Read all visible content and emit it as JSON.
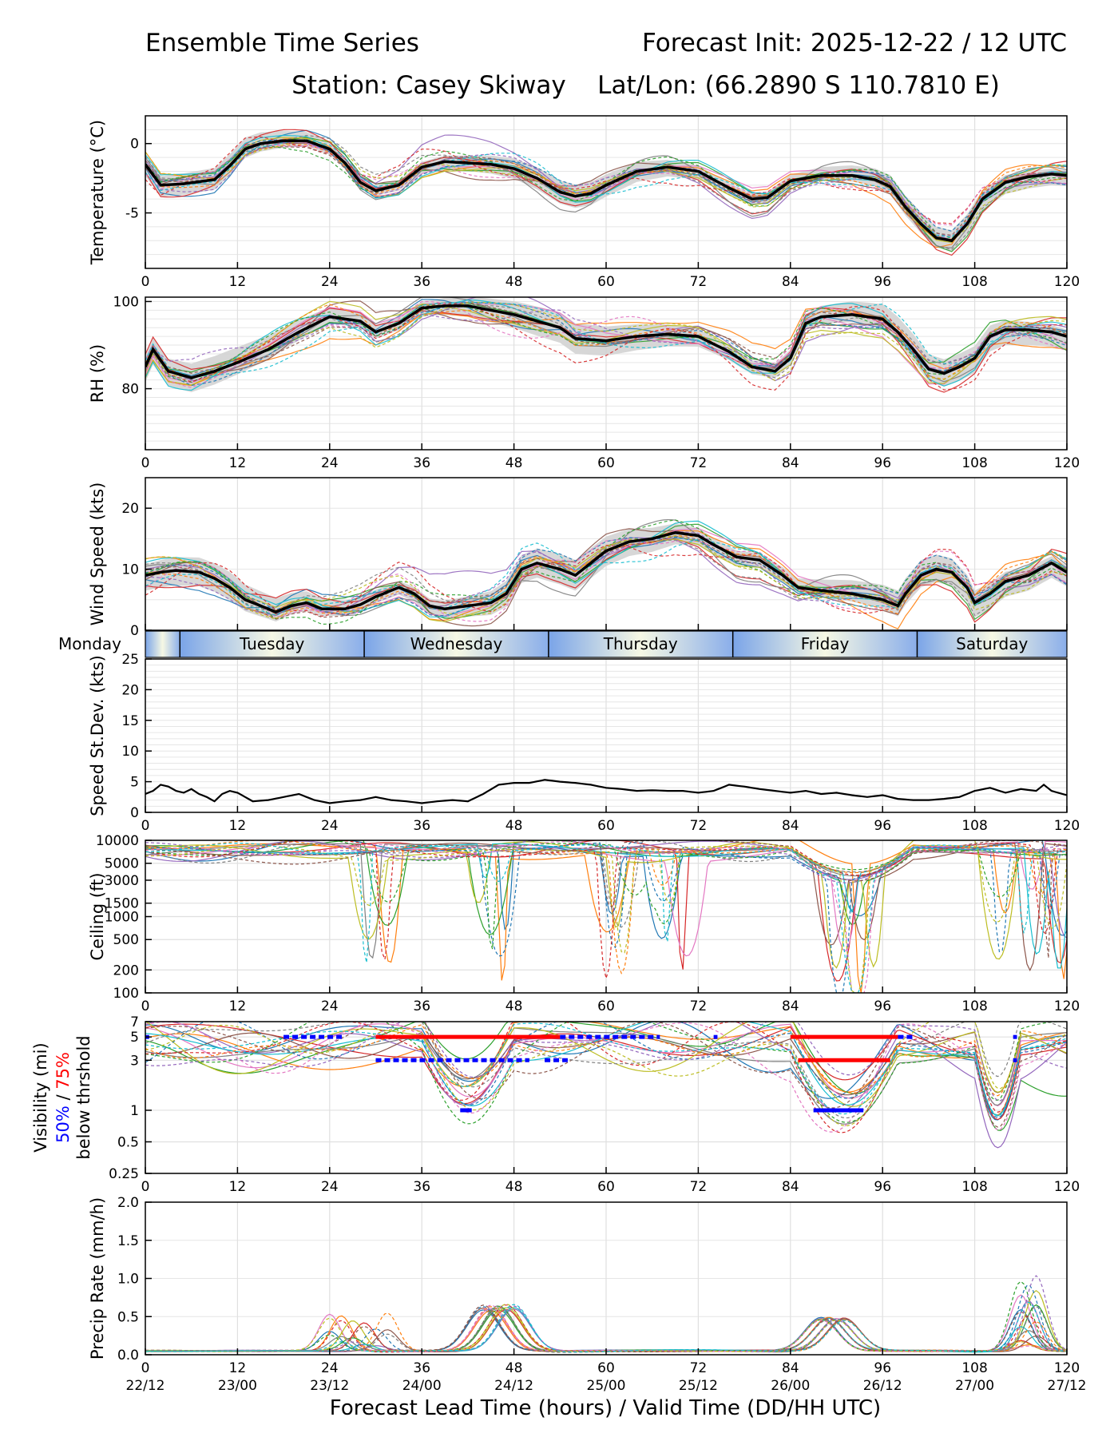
{
  "header": {
    "title_left": "Ensemble Time Series",
    "title_right": "Forecast Init: 2025-12-22 / 12 UTC",
    "station": "Station: Casey Skiway",
    "latlon": "Lat/Lon: (66.2890 S 110.7810 E)"
  },
  "xaxis": {
    "lead_ticks": [
      0,
      12,
      24,
      36,
      48,
      60,
      72,
      84,
      96,
      108,
      120
    ],
    "valid_ticks": [
      "22/12",
      "23/00",
      "23/12",
      "24/00",
      "24/12",
      "25/00",
      "25/12",
      "26/00",
      "26/12",
      "27/00",
      "27/12"
    ],
    "label": "Forecast Lead Time (hours) / Valid Time (DD/HH UTC)"
  },
  "days": {
    "labels": [
      "Monday",
      "Tuesday",
      "Wednesday",
      "Thursday",
      "Friday",
      "Saturday"
    ],
    "boundaries_h": [
      4.5,
      28.5,
      52.5,
      76.5,
      100.5
    ]
  },
  "colors": {
    "mean": "#000000",
    "spread": "#d0d0d0",
    "p50": "#0000ff",
    "p75": "#ff0000",
    "members": [
      "#1f77b4",
      "#ff7f0e",
      "#2ca02c",
      "#d62728",
      "#9467bd",
      "#8c564b",
      "#e377c2",
      "#7f7f7f",
      "#bcbd22",
      "#17becf"
    ]
  },
  "chart_data": [
    {
      "id": "temp",
      "type": "line",
      "ylabel": "Temperature (°C)",
      "ylim": [
        -9,
        2
      ],
      "yticks": [
        0,
        -5
      ],
      "grid_step": 1,
      "mean_series": {
        "x": [
          0,
          2,
          5,
          9,
          11,
          13,
          15,
          18,
          21,
          24,
          26,
          28,
          30,
          33,
          36,
          39,
          42,
          45,
          48,
          51,
          54,
          56,
          58,
          60,
          64,
          68,
          72,
          76,
          79,
          81,
          84,
          88,
          92,
          95,
          97,
          99,
          101,
          103,
          105,
          107,
          109,
          112,
          115,
          118,
          120
        ],
        "y": [
          -1.5,
          -3.0,
          -2.9,
          -2.6,
          -1.6,
          -0.4,
          0.0,
          0.2,
          0.2,
          -0.4,
          -1.4,
          -2.8,
          -3.4,
          -3.0,
          -1.7,
          -1.3,
          -1.4,
          -1.5,
          -1.8,
          -2.5,
          -3.5,
          -3.8,
          -3.6,
          -3.0,
          -2.0,
          -1.7,
          -2.0,
          -3.2,
          -4.0,
          -3.9,
          -2.7,
          -2.3,
          -2.3,
          -2.6,
          -3.1,
          -4.6,
          -5.8,
          -6.8,
          -7.0,
          -5.8,
          -4.0,
          -2.8,
          -2.4,
          -2.2,
          -2.3
        ]
      },
      "spread": 0.6
    },
    {
      "id": "rh",
      "type": "line",
      "ylabel": "RH (%)",
      "ylim": [
        66,
        101
      ],
      "yticks": [
        100,
        80
      ],
      "grid_step": 2,
      "mean_series": {
        "x": [
          0,
          1,
          3,
          6,
          9,
          12,
          16,
          20,
          24,
          28,
          30,
          33,
          36,
          39,
          42,
          45,
          48,
          51,
          54,
          56,
          60,
          64,
          68,
          72,
          76,
          79,
          82,
          84,
          86,
          88,
          92,
          96,
          98,
          100,
          102,
          104,
          106,
          108,
          110,
          112,
          115,
          118,
          120
        ],
        "y": [
          85,
          89,
          84,
          82.5,
          84,
          86,
          89,
          93,
          96.5,
          95.5,
          93,
          95,
          98.5,
          99,
          99,
          98,
          97,
          95.5,
          94,
          91.5,
          91,
          92,
          92.5,
          92,
          88.5,
          85,
          84,
          87,
          95,
          96.5,
          97,
          96,
          93,
          89,
          84.5,
          83.5,
          85,
          87,
          92,
          93.5,
          93.5,
          93,
          92
        ]
      },
      "spread": 2.5
    },
    {
      "id": "wspd",
      "type": "line",
      "ylabel": "Wind Speed (kts)",
      "ylim": [
        0,
        25
      ],
      "yticks": [
        0,
        10,
        20
      ],
      "grid_step": 5,
      "mean_series": {
        "x": [
          0,
          2,
          4,
          7,
          9,
          11,
          13,
          15,
          17,
          19,
          21,
          23,
          26,
          28,
          30,
          33,
          35,
          37,
          39,
          42,
          45,
          47,
          49,
          51,
          54,
          56,
          58,
          60,
          63,
          66,
          69,
          72,
          74,
          77,
          80,
          83,
          85,
          88,
          92,
          96,
          98,
          99,
          101,
          103,
          105,
          107,
          108,
          110,
          112,
          115,
          118,
          120
        ],
        "y": [
          9,
          9.5,
          9.8,
          9.5,
          8.5,
          7,
          5,
          4,
          3,
          4,
          4.5,
          3.5,
          3.5,
          4.2,
          5.5,
          7,
          6,
          4,
          3.5,
          4,
          4.5,
          6,
          10,
          11,
          10,
          9,
          11,
          13,
          14.5,
          15,
          16,
          15.5,
          14,
          12,
          11.5,
          9,
          7,
          6.5,
          6,
          5,
          4,
          6,
          9,
          10,
          9.5,
          7,
          4.5,
          6,
          8,
          9,
          11,
          9.5
        ]
      },
      "spread": 1.8
    },
    {
      "id": "sdev",
      "type": "line",
      "ylabel": "Speed St.Dev. (kts)",
      "ylim": [
        0,
        25
      ],
      "yticks": [
        0,
        5,
        10,
        15,
        20,
        25
      ],
      "grid_step": 1,
      "mean_series": {
        "x": [
          0,
          1,
          2,
          3,
          4,
          5,
          6,
          7,
          8,
          9,
          10,
          11,
          12,
          13,
          14,
          16,
          18,
          20,
          22,
          24,
          26,
          28,
          30,
          32,
          34,
          36,
          38,
          40,
          42,
          44,
          46,
          48,
          50,
          52,
          54,
          56,
          58,
          60,
          62,
          64,
          66,
          68,
          70,
          72,
          74,
          76,
          78,
          80,
          82,
          84,
          86,
          88,
          90,
          92,
          94,
          96,
          98,
          100,
          102,
          104,
          106,
          108,
          110,
          112,
          114,
          116,
          117,
          118,
          120
        ],
        "y": [
          3,
          3.5,
          4.5,
          4.2,
          3.5,
          3.2,
          3.8,
          3.0,
          2.5,
          1.8,
          3.0,
          3.5,
          3.2,
          2.5,
          1.8,
          2.0,
          2.5,
          3.0,
          2.0,
          1.5,
          1.8,
          2.0,
          2.5,
          2.0,
          1.8,
          1.5,
          1.8,
          2.0,
          1.8,
          3.0,
          4.5,
          4.8,
          4.8,
          5.3,
          5.0,
          4.8,
          4.5,
          4.0,
          3.8,
          3.5,
          3.6,
          3.5,
          3.5,
          3.2,
          3.5,
          4.5,
          4.2,
          3.8,
          3.5,
          3.2,
          3.5,
          3.0,
          3.2,
          2.8,
          2.5,
          2.8,
          2.2,
          2.0,
          2.0,
          2.2,
          2.5,
          3.5,
          4.0,
          3.2,
          3.8,
          3.5,
          4.5,
          3.5,
          2.8
        ]
      },
      "spread": 0
    },
    {
      "id": "ceil",
      "type": "line",
      "ylabel": "Ceiling (ft)",
      "scale": "log",
      "ylim": [
        100,
        10000
      ],
      "yticks": [
        10000,
        5000,
        3000,
        1500,
        1000,
        500,
        200,
        100
      ],
      "grid_values": [
        10000,
        5000,
        3000,
        1500,
        1000,
        500,
        200,
        100
      ]
    },
    {
      "id": "vis",
      "type": "line",
      "ylabel_lines": [
        "Visibility (mi)"
      ],
      "threshold_label": [
        "50%",
        " / ",
        "75%",
        "below thrshold"
      ],
      "scale": "log",
      "ylim": [
        0.25,
        7
      ],
      "yticks": [
        7,
        5,
        3,
        1,
        0.5,
        0.25
      ],
      "tick_labels": [
        "7",
        "5",
        "3",
        "1",
        "0.5",
        "0.25"
      ],
      "grid_values": [
        7,
        5,
        3,
        1,
        0.5,
        0.25
      ],
      "threshold_segments": [
        {
          "color": "p50",
          "y": 5,
          "x0": 0,
          "x1": 0.5,
          "dashed": true
        },
        {
          "color": "p50",
          "y": 5,
          "x0": 18,
          "x1": 26,
          "dashed": true
        },
        {
          "color": "p75",
          "y": 5,
          "x0": 30,
          "x1": 54,
          "dashed": false
        },
        {
          "color": "p50",
          "y": 5,
          "x0": 54,
          "x1": 67,
          "dashed": true
        },
        {
          "color": "p50",
          "y": 3,
          "x0": 30,
          "x1": 50,
          "dashed": true
        },
        {
          "color": "p50",
          "y": 3,
          "x0": 52,
          "x1": 55,
          "dashed": true
        },
        {
          "color": "p50",
          "y": 1,
          "x0": 41,
          "x1": 42.5,
          "dashed": false
        },
        {
          "color": "p50",
          "y": 5,
          "x0": 74,
          "x1": 74.5,
          "dashed": true
        },
        {
          "color": "p75",
          "y": 5,
          "x0": 84,
          "x1": 98,
          "dashed": false
        },
        {
          "color": "p50",
          "y": 5,
          "x0": 98,
          "x1": 100,
          "dashed": true
        },
        {
          "color": "p75",
          "y": 3,
          "x0": 85,
          "x1": 97,
          "dashed": false
        },
        {
          "color": "p50",
          "y": 1,
          "x0": 87,
          "x1": 93.5,
          "dashed": false
        },
        {
          "color": "p50",
          "y": 5,
          "x0": 113,
          "x1": 113.5,
          "dashed": true
        },
        {
          "color": "p50",
          "y": 3,
          "x0": 113,
          "x1": 113.5,
          "dashed": true
        }
      ]
    },
    {
      "id": "precip",
      "type": "line",
      "ylabel": "Precip Rate (mm/h)",
      "ylim": [
        0,
        2.0
      ],
      "yticks": [
        0,
        0.5,
        1.0,
        1.5,
        2.0
      ],
      "tick_labels": [
        "0.0",
        "0.5",
        "1.0",
        "1.5",
        "2.0"
      ],
      "grid_step": 0.5
    }
  ]
}
